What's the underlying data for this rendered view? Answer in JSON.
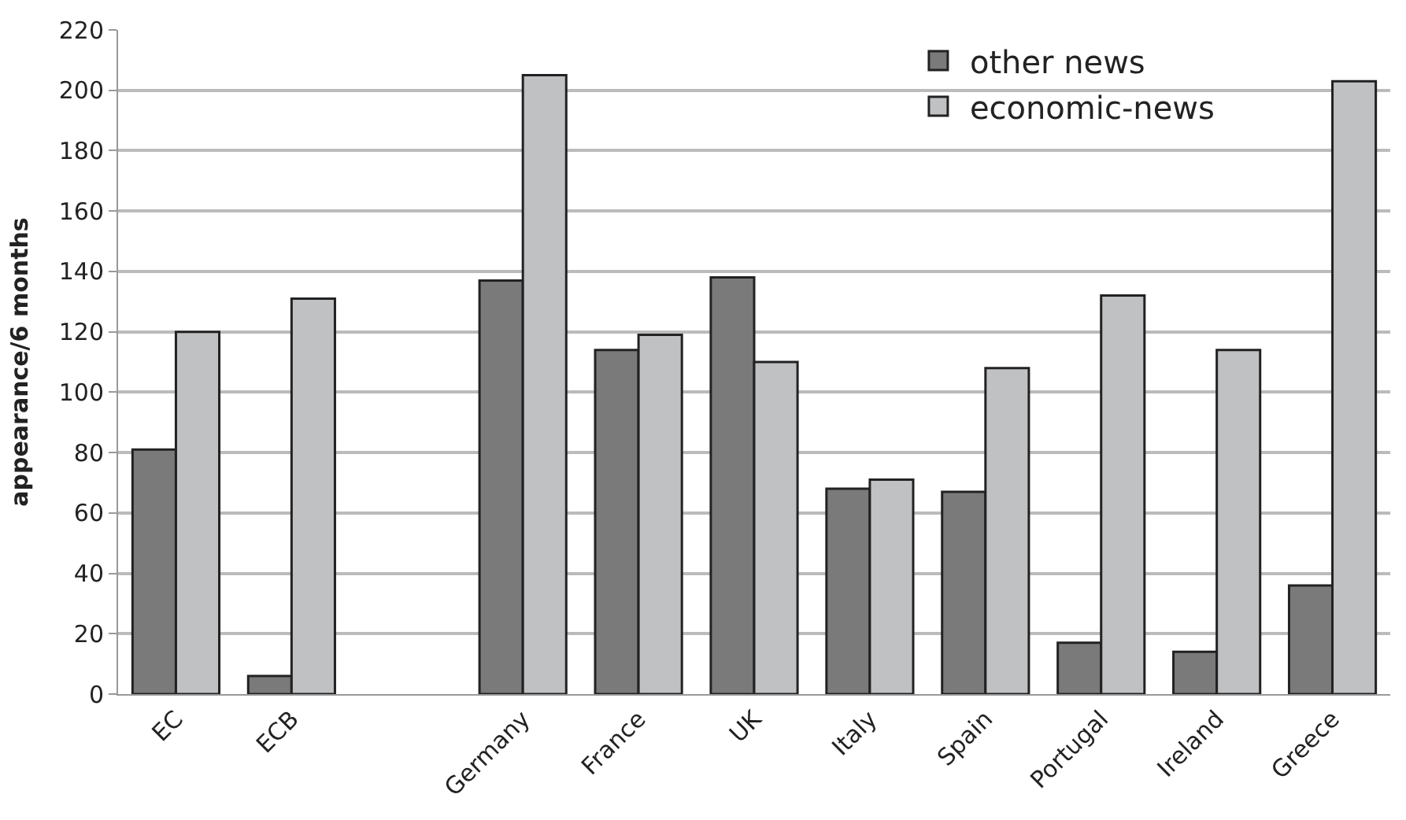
{
  "chart_data": {
    "type": "bar",
    "ylabel": "appearance/6 months",
    "categories": [
      "EC",
      "ECB",
      null,
      "Germany",
      "France",
      "UK",
      "Italy",
      "Spain",
      "Portugal",
      "Ireland",
      "Greece"
    ],
    "series": [
      {
        "name": "other news",
        "color": "#7a7a7a",
        "values": [
          81,
          6,
          null,
          137,
          114,
          138,
          68,
          67,
          17,
          14,
          36
        ]
      },
      {
        "name": "economic-news",
        "color": "#c0c1c3",
        "values": [
          120,
          131,
          null,
          205,
          119,
          110,
          71,
          108,
          132,
          114,
          203
        ]
      }
    ],
    "ylim": [
      0,
      220
    ],
    "yticks": [
      0,
      20,
      40,
      60,
      80,
      100,
      120,
      140,
      160,
      180,
      200,
      220
    ],
    "grid": "y",
    "legend": "top right"
  }
}
